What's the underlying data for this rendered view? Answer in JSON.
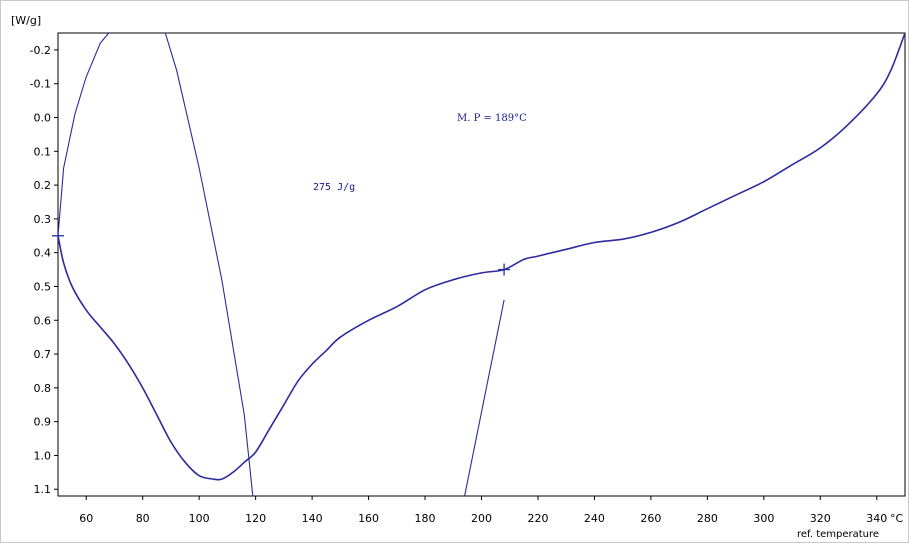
{
  "chart_data": {
    "type": "line",
    "y_unit": "[W/g]",
    "x_unit": "°C",
    "xlabel": "ref. temperature",
    "xlim": [
      50,
      350
    ],
    "ylim": [
      -0.25,
      1.12
    ],
    "y_inverted": true,
    "grid": false,
    "x_ticks": [
      60,
      80,
      100,
      120,
      140,
      160,
      180,
      200,
      220,
      240,
      260,
      280,
      300,
      320,
      340
    ],
    "y_ticks": [
      -0.2,
      -0.1,
      0.0,
      0.1,
      0.2,
      0.3,
      0.4,
      0.5,
      0.6,
      0.7,
      0.8,
      0.9,
      1.0,
      1.1
    ],
    "y_tick_labels": [
      "-0.2",
      "-0.1",
      "0.0",
      "0.1",
      "0.2",
      "0.3",
      "0.4",
      "0.5",
      "0.6",
      "0.7",
      "0.8",
      "0.9",
      "1.0",
      "1.1"
    ],
    "line_color": "#2b2b9c",
    "annotations": [
      "M. P = 189°C",
      "275  J/g"
    ],
    "series": [
      {
        "x": [
          50,
          52,
          55,
          60,
          65,
          70,
          75,
          80,
          85,
          90,
          95,
          100,
          105,
          108,
          112,
          116,
          120,
          125,
          130,
          135,
          140,
          145,
          150,
          160,
          170,
          180,
          190,
          200,
          208,
          215,
          220,
          230,
          240,
          250,
          260,
          270,
          280,
          290,
          300,
          310,
          320,
          330,
          340,
          345,
          350
        ],
        "y": [
          0.35,
          0.43,
          0.5,
          0.57,
          0.62,
          0.67,
          0.73,
          0.8,
          0.88,
          0.96,
          1.02,
          1.06,
          1.07,
          1.07,
          1.05,
          1.02,
          0.99,
          0.92,
          0.85,
          0.78,
          0.73,
          0.69,
          0.65,
          0.6,
          0.56,
          0.51,
          0.48,
          0.46,
          0.45,
          0.42,
          0.41,
          0.39,
          0.37,
          0.36,
          0.34,
          0.31,
          0.27,
          0.23,
          0.19,
          0.14,
          0.09,
          0.02,
          -0.07,
          -0.14,
          -0.25
        ]
      }
    ],
    "tangent_lines": [
      {
        "x": [
          50,
          52,
          56,
          60,
          65,
          68
        ],
        "y": [
          0.35,
          0.15,
          -0.01,
          -0.12,
          -0.22,
          -0.25
        ]
      },
      {
        "x": [
          88,
          92,
          100,
          108,
          116,
          119
        ],
        "y": [
          -0.25,
          -0.14,
          0.15,
          0.48,
          0.88,
          1.12
        ]
      },
      {
        "x": [
          194,
          208
        ],
        "y": [
          1.12,
          0.54
        ]
      }
    ],
    "markers": [
      {
        "x": 50,
        "y": 0.35
      },
      {
        "x": 208,
        "y": 0.45
      }
    ]
  }
}
